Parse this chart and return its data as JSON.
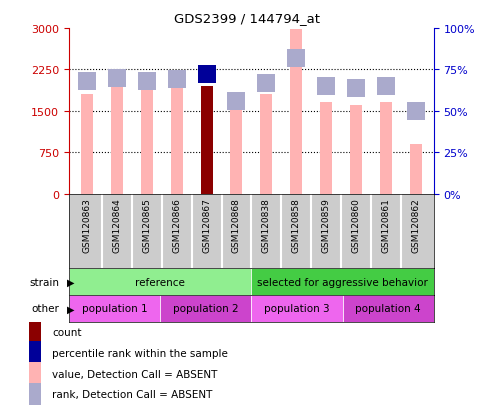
{
  "title": "GDS2399 / 144794_at",
  "samples": [
    "GSM120863",
    "GSM120864",
    "GSM120865",
    "GSM120866",
    "GSM120867",
    "GSM120868",
    "GSM120838",
    "GSM120858",
    "GSM120859",
    "GSM120860",
    "GSM120861",
    "GSM120862"
  ],
  "value_bars": [
    1800,
    2170,
    1870,
    2140,
    1950,
    1510,
    1800,
    2980,
    1650,
    1610,
    1650,
    890
  ],
  "rank_bars": [
    68,
    70,
    68,
    69,
    72,
    56,
    67,
    82,
    65,
    64,
    65,
    50
  ],
  "count_bar_idx": 4,
  "value_color_absent": "#FFB3B3",
  "value_color_count": "#8B0000",
  "rank_color_absent": "#AAAACC",
  "rank_color_count": "#000099",
  "ylim_left": [
    0,
    3000
  ],
  "ylim_right": [
    0,
    100
  ],
  "yticks_left": [
    0,
    750,
    1500,
    2250,
    3000
  ],
  "yticks_right": [
    0,
    25,
    50,
    75,
    100
  ],
  "strain_groups": [
    {
      "label": "reference",
      "start": 0,
      "end": 6,
      "color": "#90EE90"
    },
    {
      "label": "selected for aggressive behavior",
      "start": 6,
      "end": 12,
      "color": "#44CC44"
    }
  ],
  "other_groups": [
    {
      "label": "population 1",
      "start": 0,
      "end": 3,
      "color": "#EE66EE"
    },
    {
      "label": "population 2",
      "start": 3,
      "end": 6,
      "color": "#CC44CC"
    },
    {
      "label": "population 3",
      "start": 6,
      "end": 9,
      "color": "#EE66EE"
    },
    {
      "label": "population 4",
      "start": 9,
      "end": 12,
      "color": "#CC44CC"
    }
  ],
  "legend_items": [
    {
      "label": "count",
      "color": "#8B0000"
    },
    {
      "label": "percentile rank within the sample",
      "color": "#000099"
    },
    {
      "label": "value, Detection Call = ABSENT",
      "color": "#FFB3B3"
    },
    {
      "label": "rank, Detection Call = ABSENT",
      "color": "#AAAACC"
    }
  ],
  "left_axis_color": "#CC0000",
  "right_axis_color": "#0000CC",
  "bar_width": 0.4,
  "rank_square_size": 150,
  "tick_bg_color": "#CCCCCC",
  "strain_label_color": "#000000",
  "other_label_color": "#000000"
}
